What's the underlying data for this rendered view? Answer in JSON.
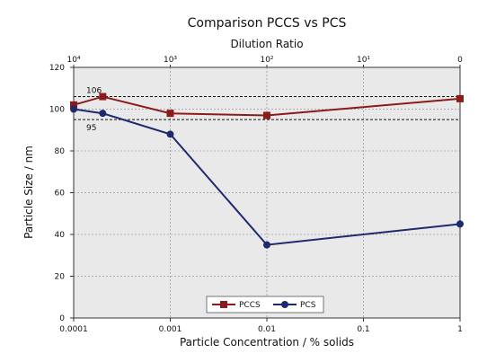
{
  "chart_data": {
    "type": "line",
    "title": "Comparison PCCS vs PCS",
    "xlabel": "Particle Concentration / % solids",
    "ylabel": "Particle Size / nm",
    "x_scale": "log",
    "xlim": [
      0.0001,
      1
    ],
    "ylim": [
      0,
      120
    ],
    "x_ticks": [
      "0.0001",
      "0.001",
      "0.01",
      "0.1",
      "1"
    ],
    "y_ticks": [
      "0",
      "20",
      "40",
      "60",
      "80",
      "100",
      "120"
    ],
    "top_axis": {
      "label": "Dilution Ratio",
      "ticks": [
        {
          "x": 0.0001,
          "label": "10⁴"
        },
        {
          "x": 0.001,
          "label": "10³"
        },
        {
          "x": 0.01,
          "label": "10²"
        },
        {
          "x": 0.1,
          "label": "10¹"
        },
        {
          "x": 1,
          "label": "0"
        }
      ]
    },
    "grid": true,
    "legend_position": "bottom-center",
    "series": [
      {
        "name": "PCCS",
        "color": "#8b1a1a",
        "marker": "square",
        "x": [
          0.0001,
          0.0002,
          0.001,
          0.01,
          1
        ],
        "y": [
          102,
          106,
          98,
          97,
          105
        ]
      },
      {
        "name": "PCS",
        "color": "#1f2a6e",
        "marker": "circle",
        "x": [
          0.0001,
          0.0002,
          0.001,
          0.01,
          1
        ],
        "y": [
          100,
          98,
          88,
          35,
          45
        ]
      }
    ],
    "reference_lines": [
      {
        "y": 106,
        "label": "106"
      },
      {
        "y": 95,
        "label": "95"
      }
    ]
  }
}
